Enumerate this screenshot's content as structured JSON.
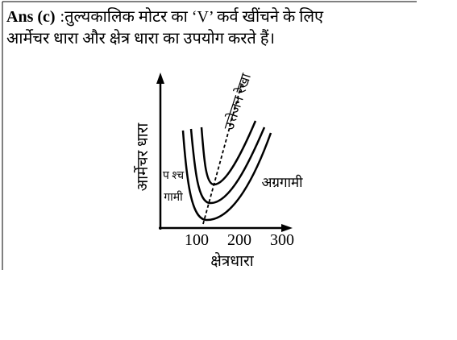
{
  "header": {
    "answer_label": "Ans (c)",
    "text_line1": ":तुल्यकालिक मोटर का ‘V’ कर्व खींचने के लिए",
    "text_line2": "आर्मेचर धारा और क्षेत्र धारा का उपयोग करते हैं।"
  },
  "diagram": {
    "y_axis_label": "आर्मेचर धारा",
    "x_axis_label": "क्षेत्रधारा",
    "x_ticks": [
      "100",
      "200",
      "300"
    ],
    "labels": {
      "lagging_top": "प श्च",
      "lagging_bottom": "गामी",
      "leading": "अग्रगामी",
      "excitation_line": "उत्तेजन रेखा"
    }
  }
}
